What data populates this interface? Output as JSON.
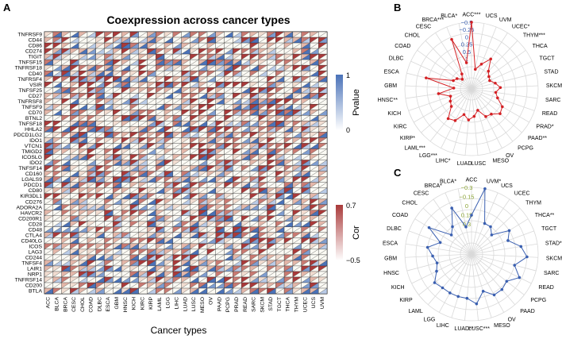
{
  "panels": {
    "a": "A",
    "b": "B",
    "c": "C"
  },
  "chart_data": [
    {
      "type": "heatmap",
      "title": "Coexpression across cancer types",
      "xlabel": "Cancer types",
      "ylabel": "",
      "rows": [
        "TNFRSF9",
        "CD44",
        "CD86",
        "CD274",
        "TIGIT",
        "TNFSF15",
        "TNFRSF18",
        "CD40",
        "TNFRSF4",
        "VSIR",
        "TNFSF25",
        "CD27",
        "TNFRSF8",
        "TNFSF9",
        "CD70",
        "BTNL2",
        "TNFSF18",
        "HHLA2",
        "PDCD1LG2",
        "IDO1",
        "VTCN1",
        "TMIGD2",
        "ICOSLG",
        "IDO2",
        "TNFSF14",
        "CD160",
        "LGALS9",
        "PDCD1",
        "CD80",
        "KIR3DL1",
        "CD276",
        "ADORA2A",
        "HAVCR2",
        "CD200R1",
        "CD28",
        "CD48",
        "CTLA4",
        "CD40LG",
        "ICOS",
        "LAG3",
        "CD244",
        "TNFSF4",
        "LAIR1",
        "NRP1",
        "TNFRSF14",
        "CD200",
        "BTLA"
      ],
      "columns": [
        "ACC",
        "BLCA",
        "BRCA",
        "CESC",
        "CHOL",
        "COAD",
        "DLBC",
        "ESCA",
        "GBM",
        "HNSC",
        "KICH",
        "KIRC",
        "KIRP",
        "LAML",
        "LGG",
        "LIHC",
        "LUAD",
        "LUSC",
        "MESO",
        "OV",
        "PAAD",
        "PCPG",
        "PRAD",
        "READ",
        "SARC",
        "SKCM",
        "STAD",
        "TGCT",
        "THCA",
        "THYM",
        "UCEC",
        "UCS",
        "UVM"
      ],
      "legends": [
        {
          "title": "Pvalue",
          "min": "0",
          "max": "1",
          "low_color": "#ffffff",
          "high_color": "#4a72b8"
        },
        {
          "title": "Cor",
          "min": "−0.5",
          "max": "0.7",
          "low_color": "#ffffff",
          "high_color": "#a93a3a"
        }
      ]
    },
    {
      "type": "radar",
      "color": "#d42024",
      "rlim": [
        -0.5,
        1
      ],
      "ticks": [
        "−0.5",
        "−0.25",
        "0",
        "0.25",
        "0.5",
        "1"
      ],
      "categories": [
        "ACC***",
        "UCS",
        "UVM",
        "UCEC*",
        "THYM***",
        "THCA",
        "TGCT",
        "STAD",
        "SKCM",
        "SARC",
        "READ",
        "PRAD*",
        "PAAD**",
        "PCPG",
        "OV",
        "MESO",
        "LUSC",
        "LUAD",
        "LIHC*",
        "LGG***",
        "LAML***",
        "KIRP*",
        "KIRC",
        "KICH",
        "HNSC**",
        "GBM",
        "ESCA",
        "DLBC",
        "COAD",
        "CHOL",
        "CESC",
        "BRCA***",
        "BLCA*"
      ],
      "values": [
        1.0,
        -0.05,
        0.1,
        0.3,
        0.05,
        -0.02,
        -0.05,
        0.05,
        0.15,
        0.05,
        0.12,
        0.3,
        0.35,
        0.22,
        0.2,
        0.0,
        0.12,
        0.2,
        0.1,
        0.3,
        0.35,
        0.1,
        0.05,
        0.0,
        0.25,
        -0.1,
        0.55,
        -0.05,
        -0.1,
        -0.2,
        -0.1,
        0.7,
        0.1
      ]
    },
    {
      "type": "radar",
      "color": "#3a5fb0",
      "rlim": [
        -0.3,
        0.3
      ],
      "ticks": [
        "−0.3",
        "−0.15",
        "0",
        "0.15",
        "0.3"
      ],
      "categories": [
        "ACC",
        "UVM*",
        "UCS",
        "UCEC",
        "THYM",
        "THCA**",
        "TGCT",
        "STAD*",
        "SKCM**",
        "SARC",
        "READ",
        "PCPG",
        "PAAD",
        "OV",
        "MESO",
        "LUSC***",
        "LUAD**",
        "LIHC",
        "LGG",
        "LAML",
        "KIRP",
        "KICH",
        "HNSC",
        "GBM",
        "ESCA",
        "DLBC",
        "COAD",
        "CHOL",
        "CESC",
        "BRCA*",
        "BLCA*"
      ],
      "values": [
        0.05,
        0.3,
        0.0,
        0.0,
        -0.05,
        0.1,
        0.05,
        0.15,
        0.2,
        0.1,
        0.18,
        0.1,
        0.12,
        0.12,
        0.05,
        0.15,
        0.1,
        0.1,
        0.1,
        0.1,
        0.12,
        0.05,
        0.02,
        0.05,
        0.1,
        0.0,
        0.15,
        -0.05,
        0.0,
        0.15,
        -0.05
      ]
    }
  ]
}
